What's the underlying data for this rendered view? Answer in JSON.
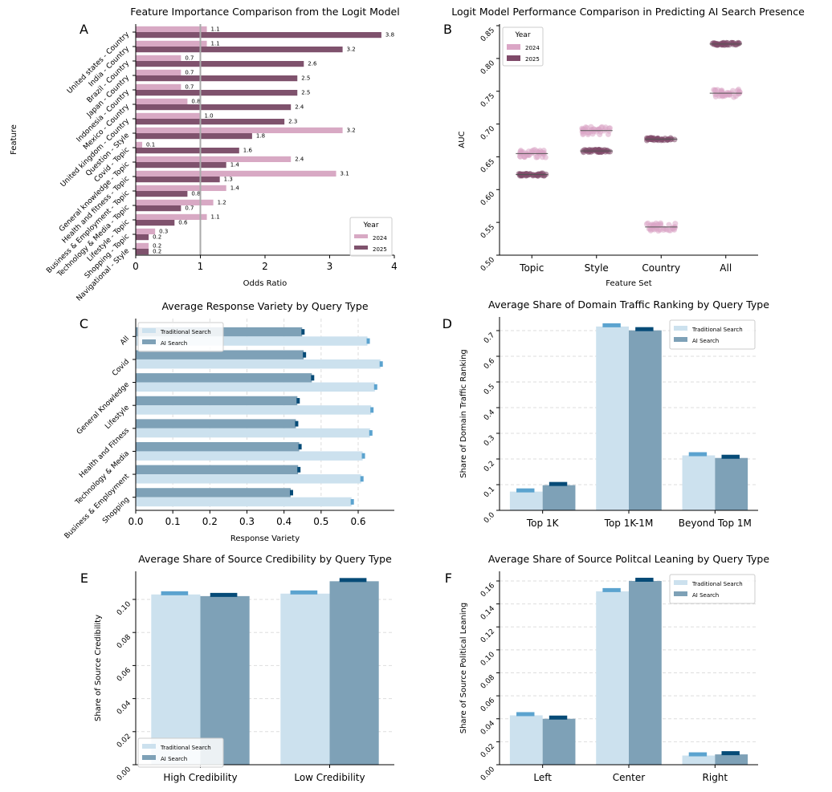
{
  "chart_data": [
    {
      "panel": "A",
      "type": "bar",
      "orientation": "horizontal",
      "title": "Feature Importance Comparison from the Logit Model",
      "xlabel": "Odds Ratio",
      "ylabel": "Feature",
      "xlim": [
        0,
        4
      ],
      "xticks": [
        "0",
        "1",
        "2",
        "3",
        "4"
      ],
      "reference_line": 1,
      "legend": {
        "title": "Year",
        "placement": "bottom-right"
      },
      "categories": [
        "United states - Country",
        "India - Country",
        "Brazil - Country",
        "Japan - Country",
        "Indonesia - Country",
        "Mexico - Country",
        "United kingdom - Country",
        "Question - Style",
        "Covid - Topic",
        "General knowledge - Topic",
        "Health and fitness - Topic",
        "Business & Employment - Topic",
        "Technology & Media - Topic",
        "Lifestyle - Topic",
        "Shopping - Topic",
        "Navigational - Style"
      ],
      "series": [
        {
          "name": "2024",
          "color": "#d8a9c4",
          "values": [
            1.1,
            1.1,
            0.7,
            0.7,
            0.7,
            0.8,
            1.0,
            3.2,
            0.1,
            2.4,
            3.1,
            1.4,
            1.2,
            1.1,
            0.3,
            0.2
          ],
          "labels": [
            "1.1",
            "1.1",
            "0.7",
            "0.7",
            "0.7",
            "0.8",
            "1.0",
            "3.2",
            "0.1",
            "2.4",
            "3.1",
            "1.4",
            "1.2",
            "1.1",
            "0.3",
            "0.2"
          ]
        },
        {
          "name": "2025",
          "color": "#7f526d",
          "values": [
            3.8,
            3.2,
            2.6,
            2.5,
            2.5,
            2.4,
            2.3,
            1.8,
            1.6,
            1.4,
            1.3,
            0.8,
            0.7,
            0.6,
            0.2,
            0.2
          ],
          "labels": [
            "3.8",
            "3.2",
            "2.6",
            "2.5",
            "2.5",
            "2.4",
            "2.3",
            "1.8",
            "1.6",
            "1.4",
            "1.3",
            "0.8",
            "0.7",
            "0.6",
            "0.2",
            "0.2"
          ]
        }
      ]
    },
    {
      "panel": "B",
      "type": "scatter",
      "style": "strip",
      "title": "Logit Model Performance Comparison in Predicting AI Search Presence",
      "xlabel": "Feature Set",
      "ylabel": "AUC",
      "ylim": [
        0.5,
        0.85
      ],
      "yticks": [
        "0.50",
        "0.55",
        "0.60",
        "0.65",
        "0.70",
        "0.75",
        "0.80",
        "0.85"
      ],
      "legend": {
        "title": "Year",
        "placement": "top-left"
      },
      "categories": [
        "Topic",
        "Style",
        "Country",
        "All"
      ],
      "series": [
        {
          "name": "2024",
          "color": "#dba6c6",
          "values": [
            0.655,
            0.69,
            0.543,
            0.747
          ]
        },
        {
          "name": "2025",
          "color": "#7f4a69",
          "values": [
            0.623,
            0.659,
            0.677,
            0.822
          ]
        }
      ]
    },
    {
      "panel": "C",
      "type": "bar",
      "orientation": "horizontal",
      "title": "Average Response Variety by Query Type",
      "xlabel": "Response Variety",
      "xlim": [
        0,
        0.7
      ],
      "xticks": [
        "0.0",
        "0.1",
        "0.2",
        "0.3",
        "0.4",
        "0.5",
        "0.6"
      ],
      "grid": true,
      "legend": {
        "placement": "top-left"
      },
      "categories": [
        "All",
        "Covid",
        "General Knowledge",
        "Lifestyle",
        "Health and Fitness",
        "Technology & Media",
        "Business & Employment",
        "Shopping"
      ],
      "series": [
        {
          "name": "Traditional Search",
          "color": "#cce1ee",
          "err_color": "#5ba3cf",
          "values": [
            0.625,
            0.66,
            0.645,
            0.635,
            0.632,
            0.612,
            0.608,
            0.582
          ]
        },
        {
          "name": "AI Search",
          "color": "#7ea1b7",
          "err_color": "#064b77",
          "values": [
            0.449,
            0.453,
            0.475,
            0.436,
            0.432,
            0.441,
            0.438,
            0.418
          ]
        }
      ]
    },
    {
      "panel": "D",
      "type": "bar",
      "title": "Average Share of Domain Traffic Ranking by Query Type",
      "ylabel": "Share of Domain Traffic Ranking",
      "ylim": [
        0,
        0.75
      ],
      "yticks": [
        "0.0",
        "0.1",
        "0.2",
        "0.3",
        "0.4",
        "0.5",
        "0.6",
        "0.7"
      ],
      "grid": true,
      "legend": {
        "placement": "top-right"
      },
      "categories": [
        "Top 1K",
        "Top 1K-1M",
        "Beyond Top 1M"
      ],
      "series": [
        {
          "name": "Traditional Search",
          "color": "#cce1ee",
          "err_color": "#5ba3cf",
          "values": [
            0.073,
            0.716,
            0.214
          ]
        },
        {
          "name": "AI Search",
          "color": "#7ea1b7",
          "err_color": "#064b77",
          "values": [
            0.098,
            0.701,
            0.204
          ]
        }
      ]
    },
    {
      "panel": "E",
      "type": "bar",
      "title": "Average Share of Source Credibility by Query Type",
      "ylabel": "Share of Source Credibility",
      "ylim": [
        0,
        0.115
      ],
      "yticks": [
        "0.00",
        "0.02",
        "0.04",
        "0.06",
        "0.08",
        "0.10"
      ],
      "grid": true,
      "legend": {
        "placement": "bottom-left"
      },
      "categories": [
        "High Credibility",
        "Low Credibility"
      ],
      "series": [
        {
          "name": "Traditional Search",
          "color": "#cce1ee",
          "err_color": "#5ba3cf",
          "values": [
            0.103,
            0.1035
          ]
        },
        {
          "name": "AI Search",
          "color": "#7ea1b7",
          "err_color": "#064b77",
          "values": [
            0.102,
            0.111
          ]
        }
      ]
    },
    {
      "panel": "F",
      "type": "bar",
      "title": "Average Share of Source Politcal Leaning by Query Type",
      "ylabel": "Share of Source Political Leaning",
      "ylim": [
        0,
        0.165
      ],
      "yticks": [
        "0.00",
        "0.02",
        "0.04",
        "0.06",
        "0.08",
        "0.10",
        "0.12",
        "0.14",
        "0.16"
      ],
      "grid": true,
      "legend": {
        "placement": "top-right"
      },
      "categories": [
        "Left",
        "Center",
        "Right"
      ],
      "series": [
        {
          "name": "Traditional Search",
          "color": "#cce1ee",
          "err_color": "#5ba3cf",
          "values": [
            0.043,
            0.151,
            0.008
          ]
        },
        {
          "name": "AI Search",
          "color": "#7ea1b7",
          "err_color": "#064b77",
          "values": [
            0.04,
            0.16,
            0.009
          ]
        }
      ]
    }
  ]
}
